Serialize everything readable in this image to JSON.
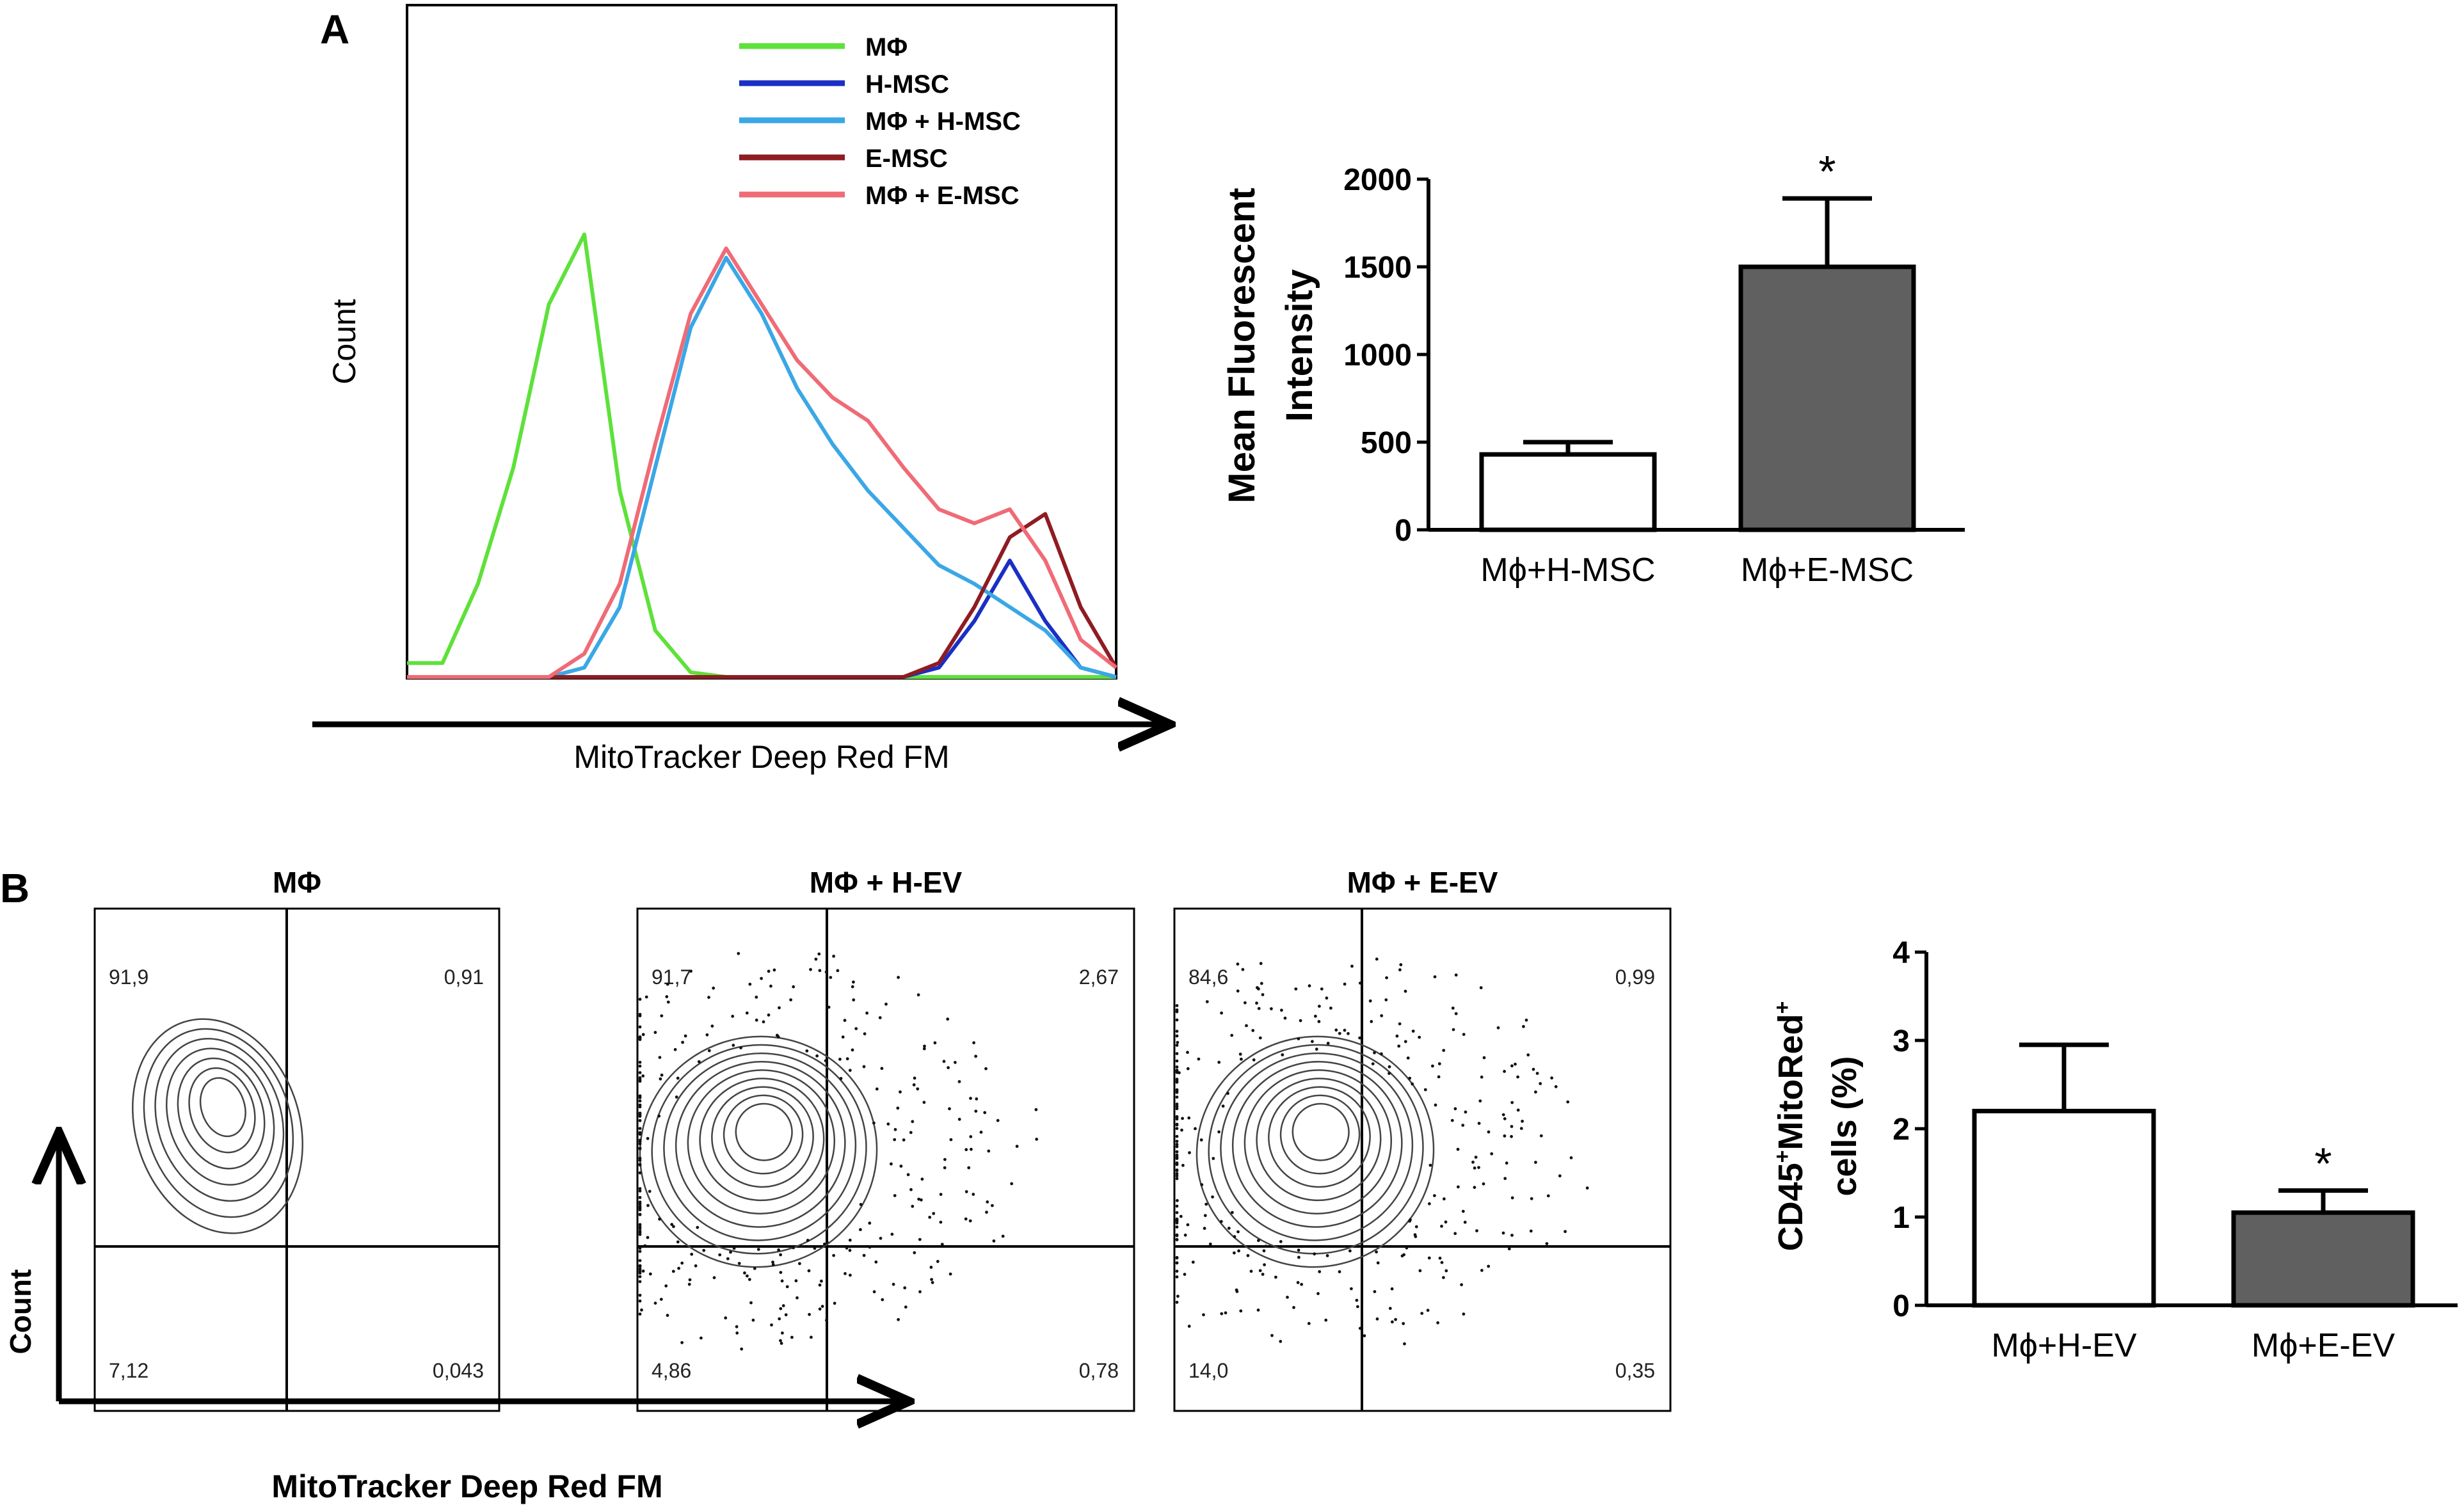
{
  "panels": {
    "a": "A",
    "b": "B"
  },
  "histogram": {
    "ylabel": "Count",
    "xlabel": "MitoTracker Deep Red FM",
    "legend": [
      {
        "label": "MΦ",
        "color": "#5ee13a"
      },
      {
        "label": "H-MSC",
        "color": "#1a2fc4"
      },
      {
        "label": "MΦ + H-MSC",
        "color": "#3aa7e6"
      },
      {
        "label": "E-MSC",
        "color": "#8e1c22"
      },
      {
        "label": "MΦ + E-MSC",
        "color": "#ef6b76"
      }
    ]
  },
  "contours": {
    "ylabel": "Count",
    "xlabel": "MitoTracker Deep Red FM",
    "plots": [
      {
        "title": "MΦ",
        "q": [
          "91,9",
          "0,91",
          "7,12",
          "0,043"
        ]
      },
      {
        "title": "MΦ + H-EV",
        "q": [
          "91,7",
          "2,67",
          "4,86",
          "0,78"
        ]
      },
      {
        "title": "MΦ + E-EV",
        "q": [
          "84,6",
          "0,99",
          "14,0",
          "0,35"
        ]
      }
    ]
  },
  "chart_data": [
    {
      "type": "line",
      "title": "",
      "xlabel": "MitoTracker Deep Red FM",
      "ylabel": "Count",
      "x": [
        0,
        5,
        10,
        15,
        20,
        25,
        30,
        35,
        40,
        45,
        50,
        55,
        60,
        65,
        70,
        75,
        80,
        85,
        90,
        95,
        100
      ],
      "series": [
        {
          "name": "MΦ",
          "values": [
            3,
            3,
            20,
            45,
            80,
            95,
            40,
            10,
            1,
            0,
            0,
            0,
            0,
            0,
            0,
            0,
            0,
            0,
            0,
            0,
            0
          ]
        },
        {
          "name": "H-MSC",
          "values": [
            0,
            0,
            0,
            0,
            0,
            0,
            0,
            0,
            0,
            0,
            0,
            0,
            0,
            0,
            0,
            2,
            12,
            25,
            12,
            2,
            0
          ]
        },
        {
          "name": "MΦ + H-MSC",
          "values": [
            0,
            0,
            0,
            0,
            0,
            2,
            15,
            45,
            75,
            90,
            78,
            62,
            50,
            40,
            32,
            24,
            20,
            15,
            10,
            2,
            0
          ]
        },
        {
          "name": "E-MSC",
          "values": [
            0,
            0,
            0,
            0,
            0,
            0,
            0,
            0,
            0,
            0,
            0,
            0,
            0,
            0,
            0,
            3,
            15,
            30,
            35,
            15,
            2
          ]
        },
        {
          "name": "MΦ + E-MSC",
          "values": [
            0,
            0,
            0,
            0,
            0,
            5,
            20,
            50,
            78,
            92,
            80,
            68,
            60,
            55,
            45,
            36,
            33,
            36,
            25,
            8,
            2
          ]
        }
      ]
    },
    {
      "type": "bar",
      "title": "",
      "categories": [
        "Mϕ+H-MSC",
        "Mϕ+E-MSC"
      ],
      "values": [
        430,
        1500
      ],
      "errors": [
        70,
        390
      ],
      "colors": [
        "#ffffff",
        "#606060"
      ],
      "ylabel": "Mean Fluorescent\nIntensity",
      "ylim": [
        0,
        2000
      ],
      "yticks": [
        0,
        500,
        1000,
        1500,
        2000
      ],
      "annotations": [
        "",
        "*"
      ]
    },
    {
      "type": "bar",
      "title": "",
      "categories": [
        "Mϕ+H-EV",
        "Mϕ+E-EV"
      ],
      "values": [
        2.2,
        1.05
      ],
      "errors": [
        0.75,
        0.25
      ],
      "colors": [
        "#ffffff",
        "#606060"
      ],
      "ylabel": "CD45+MitoRed+ cells (%)",
      "ylim": [
        0,
        4
      ],
      "yticks": [
        0,
        1,
        2,
        3,
        4
      ],
      "annotations": [
        "",
        "*"
      ]
    }
  ]
}
